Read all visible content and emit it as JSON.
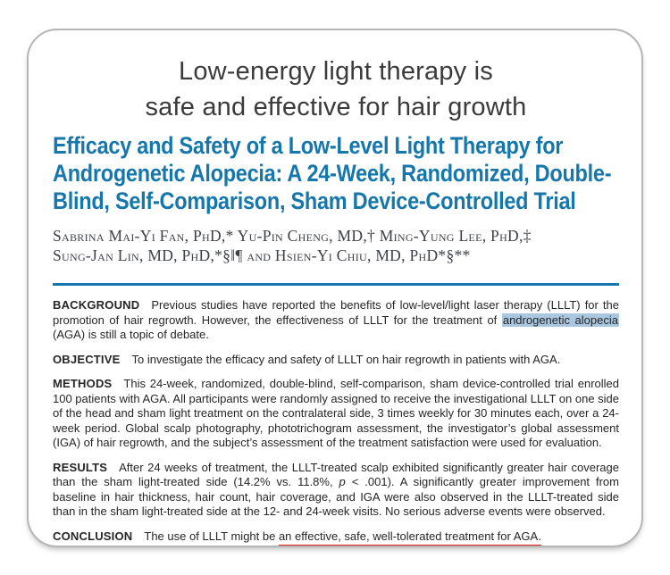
{
  "colors": {
    "accent_blue": "#1577ab",
    "highlight_blue": "#a9c7e0",
    "underline_red": "#e62319",
    "headline_text": "#3b3b3b",
    "body_text": "#262626",
    "author_text": "#3d4049",
    "card_border": "#b5b5b5",
    "page_bg": "#ffffff"
  },
  "headline": {
    "lines": [
      "Low-energy light therapy is",
      "safe and effective for hair growth"
    ]
  },
  "paper": {
    "title_lines": [
      "Efficacy and Safety of a Low-Level Light Therapy for",
      "Androgenetic Alopecia: A 24-Week, Randomized, Double-",
      "Blind, Self-Comparison, Sham Device-Controlled Trial"
    ],
    "author_lines": [
      "Sabrina Mai-Yi Fan, PhD,* Yu-Pin Cheng, MD,† Ming-Yung Lee, PhD,‡",
      "Sung-Jan Lin, MD, PhD,*§‖¶ and Hsien-Yi Chiu, MD, PhD*§**"
    ]
  },
  "abstract": {
    "background": {
      "label": "BACKGROUND",
      "text_before": "Previous studies have reported the benefits of low-level/light laser therapy (LLLT) for the promotion of hair regrowth. However, the effectiveness of LLLT for the treatment of ",
      "highlight": "androgenetic alopecia",
      "text_after": " (AGA) is still a topic of debate."
    },
    "objective": {
      "label": "OBJECTIVE",
      "text": "To investigate the efficacy and safety of LLLT on hair regrowth in patients with AGA."
    },
    "methods": {
      "label": "METHODS",
      "text": "This 24-week, randomized, double-blind, self-comparison, sham device-controlled trial enrolled 100 patients with AGA. All participants were randomly assigned to receive the investigational LLLT on one side of the head and sham light treatment on the contralateral side, 3 times weekly for 30 minutes each, over a 24-week period. Global scalp photography, phototrichogram assessment, the investigator’s global assessment (IGA) of hair regrowth, and the subject’s assessment of the treatment satisfaction were used for evaluation."
    },
    "results": {
      "label": "RESULTS",
      "text_before_p": "After 24 weeks of treatment, the LLLT-treated scalp exhibited significantly greater hair coverage than the sham light-treated side (14.2% vs. 11.8%, ",
      "p_var": "p",
      "text_after_p": " < .001). A significantly greater improvement from baseline in hair thickness, hair count, hair coverage, and IGA were also observed in the LLLT-treated side than in the sham light-treated side at the 12- and 24-week visits. No serious adverse events were observed."
    },
    "conclusion": {
      "label": "CONCLUSION",
      "text_before": "The use of LLLT might be ",
      "underlined": "an effective, safe, well-tolerated treatment for AGA."
    }
  }
}
